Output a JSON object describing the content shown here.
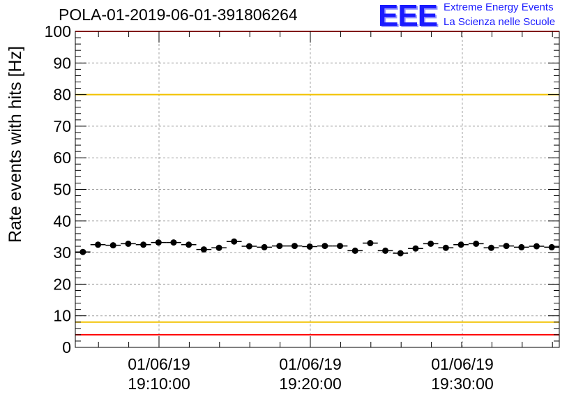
{
  "chart_data": {
    "type": "scatter",
    "title": "POLA-01-2019-06-01-391806264",
    "ylabel": "Rate events with hits [Hz]",
    "xlabel": "",
    "ylim": [
      0,
      100
    ],
    "yticks": [
      0,
      10,
      20,
      30,
      40,
      50,
      60,
      70,
      80,
      90,
      100
    ],
    "x_tick_labels": [
      {
        "date": "01/06/19",
        "time": "19:10:00"
      },
      {
        "date": "01/06/19",
        "time": "19:20:00"
      },
      {
        "date": "01/06/19",
        "time": "19:30:00"
      }
    ],
    "grid": true,
    "reference_lines": [
      {
        "y": 100,
        "color": "#ff0000"
      },
      {
        "y": 80,
        "color": "#f2c200"
      },
      {
        "y": 8,
        "color": "#f2c200"
      },
      {
        "y": 4,
        "color": "#ff0000"
      }
    ],
    "series": [
      {
        "marker_color": "#000000",
        "values": [
          30.2,
          32.5,
          32.3,
          32.8,
          32.5,
          33.2,
          33.2,
          32.5,
          31.0,
          31.5,
          33.5,
          32.0,
          31.7,
          32.1,
          32.1,
          31.9,
          32.1,
          32.1,
          30.6,
          33.0,
          30.6,
          29.8,
          31.3,
          32.8,
          31.5,
          32.5,
          32.8,
          31.5,
          32.1,
          31.7,
          32.0,
          31.7
        ]
      }
    ]
  },
  "logo": {
    "mark": "EEE",
    "line1": "Extreme Energy Events",
    "line2": "La Scienza nelle Scuole"
  }
}
